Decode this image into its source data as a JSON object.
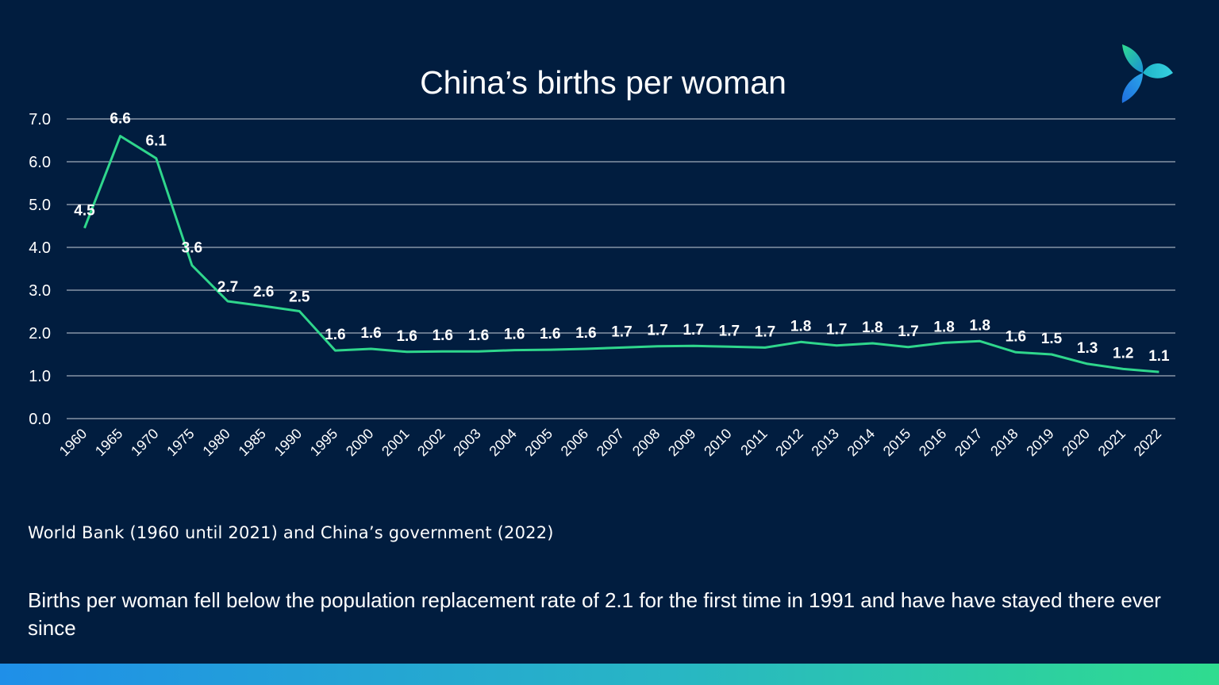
{
  "slide": {
    "source": "World Bank (1960 until 2021) and China’s government (2022)",
    "note": "Births per woman fell below the population replacement rate of 2.1 for the first time in 1991 and have have stayed there ever since",
    "logo_icon": "trefoil-logo-icon",
    "colors": {
      "background": "#011d3f",
      "line": "#2fd68c",
      "bar_start": "#1f8fe8",
      "bar_end": "#2fdc8f"
    }
  },
  "chart_data": {
    "type": "line",
    "title": "China’s births per woman",
    "xlabel": "",
    "ylabel": "",
    "categories": [
      "1960",
      "1965",
      "1970",
      "1975",
      "1980",
      "1985",
      "1990",
      "1995",
      "2000",
      "2001",
      "2002",
      "2003",
      "2004",
      "2005",
      "2006",
      "2007",
      "2008",
      "2009",
      "2010",
      "2011",
      "2012",
      "2013",
      "2014",
      "2015",
      "2016",
      "2017",
      "2018",
      "2019",
      "2020",
      "2021",
      "2022"
    ],
    "series": [
      {
        "values": [
          4.45,
          6.6,
          6.08,
          3.58,
          2.74,
          2.63,
          2.51,
          1.59,
          1.63,
          1.56,
          1.57,
          1.57,
          1.6,
          1.61,
          1.63,
          1.66,
          1.69,
          1.7,
          1.68,
          1.66,
          1.79,
          1.71,
          1.76,
          1.67,
          1.77,
          1.81,
          1.55,
          1.5,
          1.28,
          1.16,
          1.09
        ],
        "data_labels": [
          "4.5",
          "6.6",
          "6.1",
          "3.6",
          "2.7",
          "2.6",
          "2.5",
          "1.6",
          "1.6",
          "1.6",
          "1.6",
          "1.6",
          "1.6",
          "1.6",
          "1.6",
          "1.7",
          "1.7",
          "1.7",
          "1.7",
          "1.7",
          "1.8",
          "1.7",
          "1.8",
          "1.7",
          "1.8",
          "1.8",
          "1.6",
          "1.5",
          "1.3",
          "1.2",
          "1.1"
        ]
      }
    ],
    "ylim": [
      0,
      7
    ],
    "yticks": [
      "0.0",
      "1.0",
      "2.0",
      "3.0",
      "4.0",
      "5.0",
      "6.0",
      "7.0"
    ],
    "grid": true,
    "legend": "none"
  }
}
